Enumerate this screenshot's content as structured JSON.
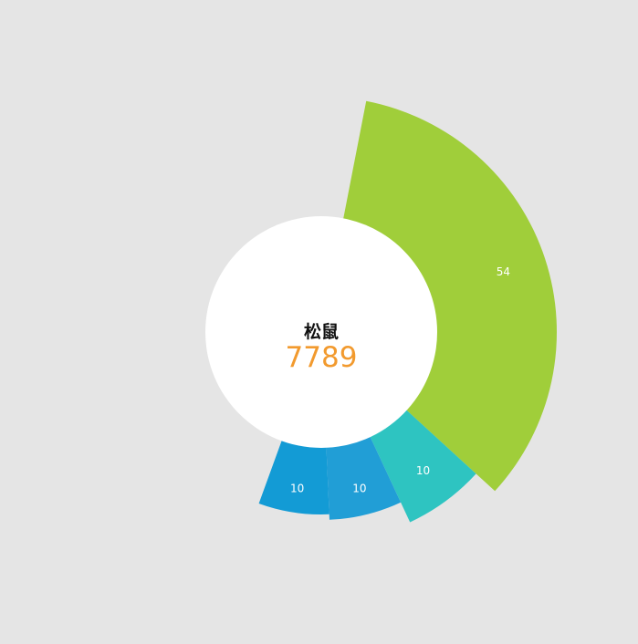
{
  "chart_data": {
    "type": "pie",
    "variant": "rose",
    "slices": [
      {
        "label": "54",
        "value": 54,
        "color": "#a0ce3a"
      },
      {
        "label": "10",
        "value": 10,
        "color": "#2ec4c1"
      },
      {
        "label": "10",
        "value": 10,
        "color": "#219ed6"
      },
      {
        "label": "10",
        "value": 10,
        "color": "#139bd5"
      }
    ],
    "center": {
      "name": "松鼠",
      "value": "7789"
    },
    "colors": {
      "background": "#e5e5e5",
      "center_fill": "#ffffff",
      "center_value": "#f29a2e"
    }
  }
}
